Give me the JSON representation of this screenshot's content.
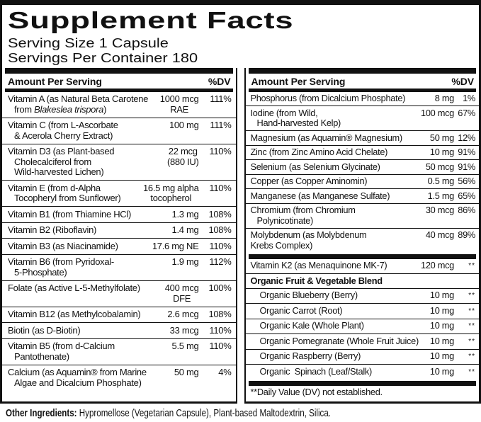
{
  "title": "Supplement Facts",
  "serving_size": "Serving Size 1 Capsule",
  "servings_per_container": "Servings Per Container 180",
  "column_header": {
    "amount": "Amount Per Serving",
    "dv": "%DV"
  },
  "columns": [
    {
      "rows": [
        {
          "name_lines": [
            "Vitamin A (as Natural Beta Carotene",
            "from |Blakeslea trispora|)"
          ],
          "amount_lines": [
            "1000 mcg",
            "RAE"
          ],
          "dv": "111%"
        },
        {
          "name_lines": [
            "Vitamin C (from L-Ascorbate",
            "& Acerola Cherry Extract)"
          ],
          "amount_lines": [
            "100 mg"
          ],
          "dv": "111%"
        },
        {
          "name_lines": [
            "Vitamin D3 (as Plant-based",
            "Cholecalciferol from",
            "Wild-harvested Lichen)"
          ],
          "amount_lines": [
            "22 mcg",
            "(880 IU)"
          ],
          "dv": "110%"
        },
        {
          "name_lines": [
            "Vitamin E (from d-Alpha",
            "Tocopheryl from Sunflower)"
          ],
          "amount_lines": [
            "16.5 mg alpha",
            "tocopherol"
          ],
          "dv": "110%"
        },
        {
          "name_lines": [
            "Vitamin B1 (from Thiamine HCl)"
          ],
          "amount_lines": [
            "1.3 mg"
          ],
          "dv": "108%"
        },
        {
          "name_lines": [
            "Vitamin B2 (Riboflavin)"
          ],
          "amount_lines": [
            "1.4 mg"
          ],
          "dv": "108%"
        },
        {
          "name_lines": [
            "Vitamin B3 (as Niacinamide)"
          ],
          "amount_lines": [
            "17.6 mg NE"
          ],
          "dv": "110%"
        },
        {
          "name_lines": [
            "Vitamin B6 (from Pyridoxal-",
            "5-Phosphate)"
          ],
          "amount_lines": [
            "1.9 mg"
          ],
          "dv": "112%"
        },
        {
          "name_lines": [
            "Folate (as Active L-5-Methylfolate)"
          ],
          "amount_lines": [
            "400 mcg",
            "DFE"
          ],
          "dv": "100%"
        },
        {
          "name_lines": [
            "Vitamin B12 (as Methylcobalamin)"
          ],
          "amount_lines": [
            "2.6 mcg"
          ],
          "dv": "108%"
        },
        {
          "name_lines": [
            "Biotin (as D-Biotin)"
          ],
          "amount_lines": [
            "33 mcg"
          ],
          "dv": "110%"
        },
        {
          "name_lines": [
            "Vitamin B5 (from d-Calcium",
            "Pantothenate)"
          ],
          "amount_lines": [
            "5.5 mg"
          ],
          "dv": "110%"
        },
        {
          "name_lines": [
            "Calcium (as Aquamin® from Marine",
            "Algae and Dicalcium Phosphate)"
          ],
          "amount_lines": [
            "50 mg"
          ],
          "dv": "4%"
        }
      ]
    },
    {
      "rows": [
        {
          "name_lines": [
            "Phosphorus (from Dicalcium Phosphate)"
          ],
          "amount_lines": [
            "8 mg"
          ],
          "dv": "1%"
        },
        {
          "name_lines": [
            "Iodine (from Wild,",
            "Hand-harvested Kelp)"
          ],
          "amount_lines": [
            "100 mcg"
          ],
          "dv": "67%"
        },
        {
          "name_lines": [
            "Magnesium (as Aquamin® Magnesium)"
          ],
          "amount_lines": [
            "50 mg"
          ],
          "dv": "12%"
        },
        {
          "name_lines": [
            "Zinc (from Zinc Amino Acid Chelate)"
          ],
          "amount_lines": [
            "10 mg"
          ],
          "dv": "91%"
        },
        {
          "name_lines": [
            "Selenium (as Selenium Glycinate)"
          ],
          "amount_lines": [
            "50 mcg"
          ],
          "dv": "91%"
        },
        {
          "name_lines": [
            "Copper (as Copper Aminomin)"
          ],
          "amount_lines": [
            "0.5 mg"
          ],
          "dv": "56%"
        },
        {
          "name_lines": [
            "Manganese (as Manganese Sulfate)"
          ],
          "amount_lines": [
            "1.5 mg"
          ],
          "dv": "65%"
        },
        {
          "name_lines": [
            "Chromium (from Chromium",
            "Polynicotinate)"
          ],
          "amount_lines": [
            "30 mcg"
          ],
          "dv": "86%"
        },
        {
          "name_lines": [
            "Molybdenum (as Molybdenum",
            "Krebs Complex)"
          ],
          "cont_indent": false,
          "amount_lines": [
            "40 mcg"
          ],
          "dv": "89%"
        },
        {
          "kind": "bar"
        },
        {
          "name_lines": [
            "Vitamin K2 (as Menaquinone MK-7)"
          ],
          "amount_lines": [
            "120 mcg"
          ],
          "dv": "**"
        },
        {
          "kind": "blend",
          "bold": true,
          "name_lines": [
            "Organic Fruit & Vegetable Blend"
          ]
        },
        {
          "indent": true,
          "name_lines": [
            "Organic Blueberry (Berry)"
          ],
          "amount_lines": [
            "10 mg"
          ],
          "dv": "**"
        },
        {
          "indent": true,
          "name_lines": [
            "Organic Carrot (Root)"
          ],
          "amount_lines": [
            "10 mg"
          ],
          "dv": "**"
        },
        {
          "indent": true,
          "name_lines": [
            "Organic Kale (Whole Plant)"
          ],
          "amount_lines": [
            "10 mg"
          ],
          "dv": "**"
        },
        {
          "indent": true,
          "name_lines": [
            "Organic Pomegranate (Whole Fruit Juice)"
          ],
          "amount_lines": [
            "10 mg"
          ],
          "dv": "**"
        },
        {
          "indent": true,
          "name_lines": [
            "Organic Raspberry (Berry)"
          ],
          "amount_lines": [
            "10 mg"
          ],
          "dv": "**"
        },
        {
          "indent": true,
          "name_lines": [
            "Organic  Spinach (Leaf/Stalk)"
          ],
          "amount_lines": [
            "10 mg"
          ],
          "dv": "**"
        },
        {
          "kind": "bar"
        },
        {
          "kind": "note",
          "name_lines": [
            "**Daily Value (DV) not established."
          ]
        }
      ]
    }
  ],
  "footer": {
    "label": "Other Ingredients:",
    "text": " Hypromellose (Vegetarian Capsule), Plant-based Maltodextrin, Silica."
  },
  "colors": {
    "ink": "#111111",
    "paper": "#ffffff"
  }
}
